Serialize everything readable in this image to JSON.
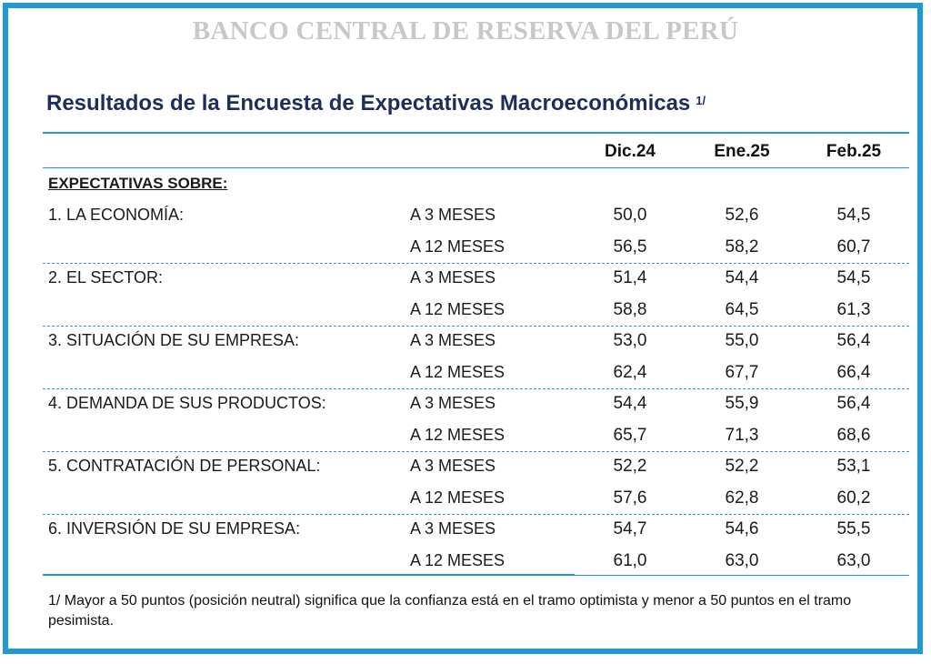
{
  "header": {
    "bank_name": "BANCO CENTRAL DE RESERVA DEL PERÚ",
    "title": "Resultados de la Encuesta de Expectativas Macroeconómicas",
    "title_note": "1/"
  },
  "table": {
    "columns": [
      "Dic.24",
      "Ene.25",
      "Feb.25"
    ],
    "section_label": "EXPECTATIVAS SOBRE:",
    "rows": [
      {
        "category": "1. LA ECONOMÍA:",
        "horizon": "A 3 MESES",
        "values": [
          "50,0",
          "52,6",
          "54,5"
        ]
      },
      {
        "category": "",
        "horizon": "A 12 MESES",
        "values": [
          "56,5",
          "58,2",
          "60,7"
        ]
      },
      {
        "category": "2. EL SECTOR:",
        "horizon": "A 3 MESES",
        "values": [
          "51,4",
          "54,4",
          "54,5"
        ]
      },
      {
        "category": "",
        "horizon": "A 12 MESES",
        "values": [
          "58,8",
          "64,5",
          "61,3"
        ]
      },
      {
        "category": "3. SITUACIÓN DE SU EMPRESA:",
        "horizon": "A 3 MESES",
        "values": [
          "53,0",
          "55,0",
          "56,4"
        ]
      },
      {
        "category": "",
        "horizon": "A 12 MESES",
        "values": [
          "62,4",
          "67,7",
          "66,4"
        ]
      },
      {
        "category": "4. DEMANDA DE SUS PRODUCTOS:",
        "horizon": "A 3 MESES",
        "values": [
          "54,4",
          "55,9",
          "56,4"
        ]
      },
      {
        "category": "",
        "horizon": "A 12 MESES",
        "values": [
          "65,7",
          "71,3",
          "68,6"
        ]
      },
      {
        "category": "5. CONTRATACIÓN DE PERSONAL:",
        "horizon": "A 3 MESES",
        "values": [
          "52,2",
          "52,2",
          "53,1"
        ]
      },
      {
        "category": "",
        "horizon": "A 12 MESES",
        "values": [
          "57,6",
          "62,8",
          "60,2"
        ]
      },
      {
        "category": "6. INVERSIÓN DE SU EMPRESA:",
        "horizon": "A 3 MESES",
        "values": [
          "54,7",
          "54,6",
          "55,5"
        ]
      },
      {
        "category": "",
        "horizon": "A 12 MESES",
        "values": [
          "61,0",
          "63,0",
          "63,0"
        ]
      }
    ]
  },
  "footnote": "1/ Mayor a 50 puntos (posición neutral) significa que la confianza está en el tramo optimista y menor a 50 puntos en el tramo pesimista.",
  "colors": {
    "accent": "#1e9ad6",
    "title": "#1d2d5c",
    "bank_name": "#c8c8c8"
  }
}
